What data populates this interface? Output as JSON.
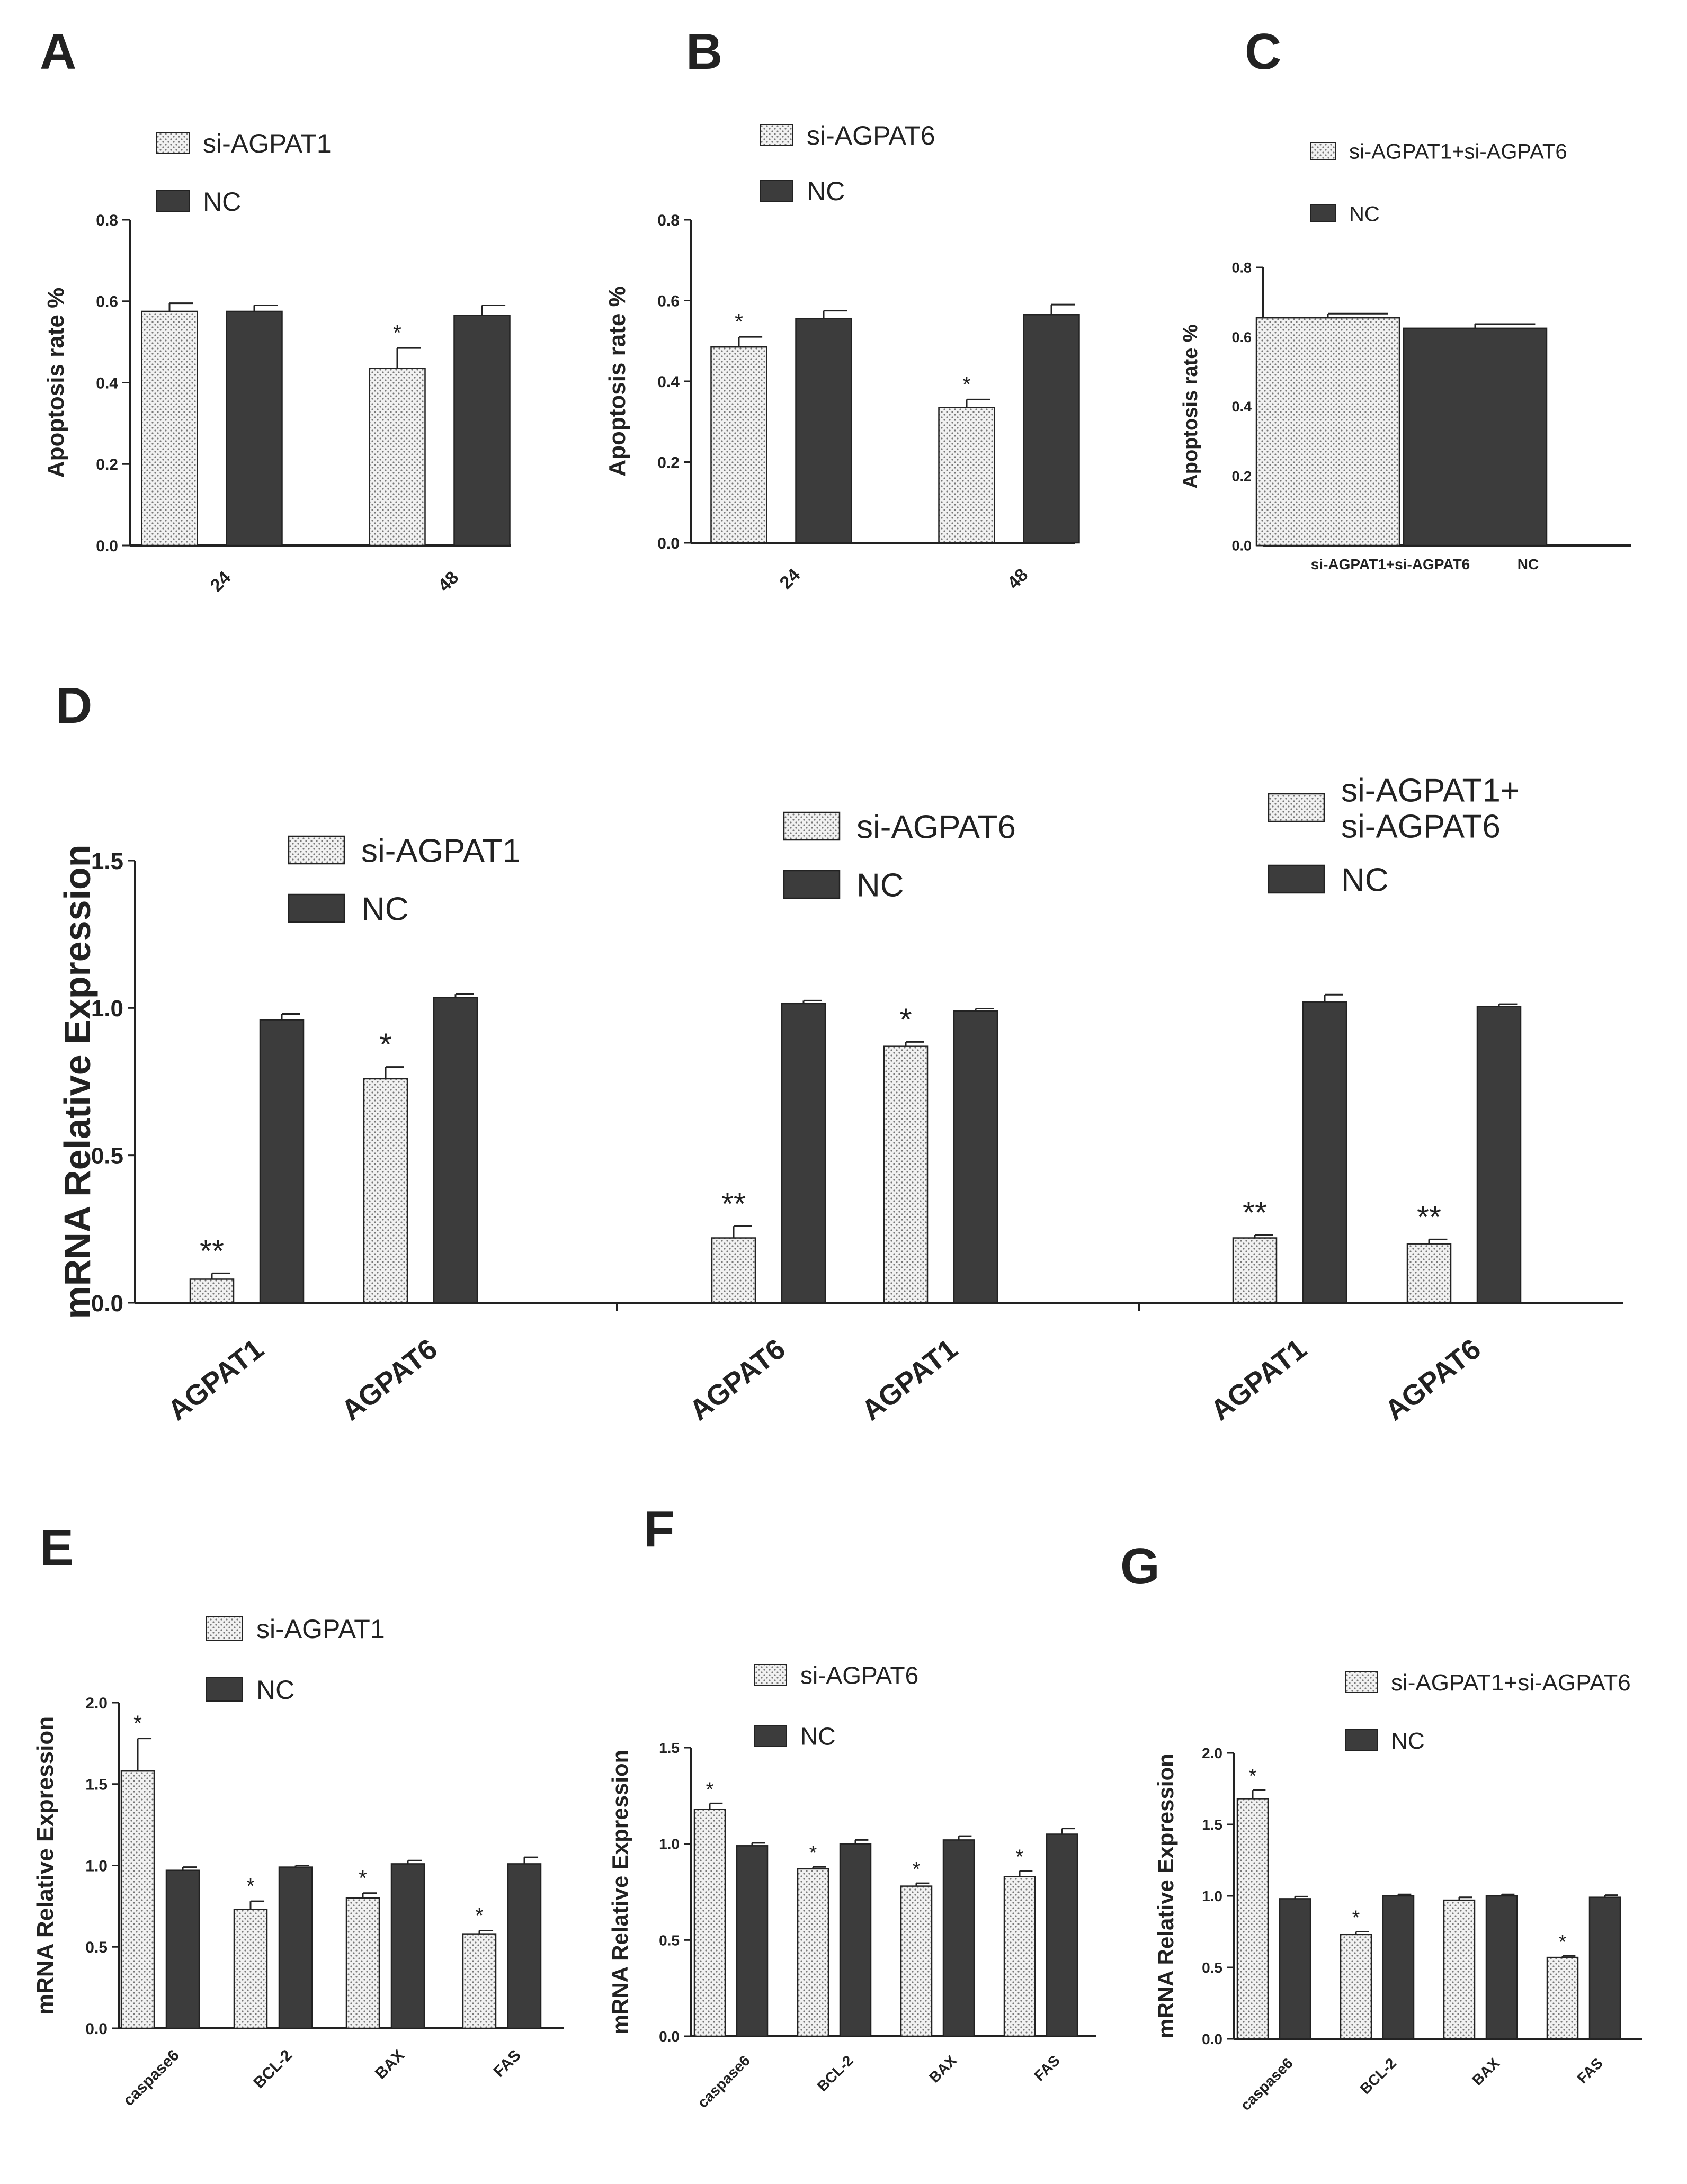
{
  "colors": {
    "nc": "#3c3c3c",
    "si_fill": "#f1f1f1",
    "axis": "#222222",
    "dot": "#777777"
  },
  "chart_data": [
    {
      "panel": "A",
      "type": "bar",
      "categories": [
        "24",
        "48"
      ],
      "series": [
        {
          "name": "si-AGPAT1",
          "values": [
            0.575,
            0.435
          ],
          "errors": [
            0.02,
            0.05
          ]
        },
        {
          "name": "NC",
          "values": [
            0.575,
            0.565
          ],
          "errors": [
            0.015,
            0.025
          ]
        }
      ],
      "significance": [
        [
          "",
          ""
        ],
        [
          "*",
          ""
        ]
      ],
      "ylabel": "Apoptosis rate %",
      "ylim": [
        0,
        0.8
      ],
      "yticks": [
        0,
        0.2,
        0.4,
        0.6,
        0.8
      ],
      "ytick_labels": [
        "0.0",
        "0.2",
        "0.4",
        "0.6",
        "0.8"
      ],
      "legend": [
        "si-AGPAT1",
        "NC"
      ]
    },
    {
      "panel": "B",
      "type": "bar",
      "categories": [
        "24",
        "48"
      ],
      "series": [
        {
          "name": "si-AGPAT6",
          "values": [
            0.485,
            0.335
          ],
          "errors": [
            0.025,
            0.02
          ]
        },
        {
          "name": "NC",
          "values": [
            0.555,
            0.565
          ],
          "errors": [
            0.02,
            0.025
          ]
        }
      ],
      "significance": [
        [
          "*",
          ""
        ],
        [
          "*",
          ""
        ]
      ],
      "ylabel": "Apoptosis rate %",
      "ylim": [
        0,
        0.8
      ],
      "yticks": [
        0,
        0.2,
        0.4,
        0.6,
        0.8
      ],
      "ytick_labels": [
        "0.0",
        "0.2",
        "0.4",
        "0.6",
        "0.8"
      ],
      "legend": [
        "si-AGPAT6",
        "NC"
      ]
    },
    {
      "panel": "C",
      "type": "bar",
      "categories": [
        "si-AGPAT1+si-AGPAT6",
        "NC"
      ],
      "series": [
        {
          "name": "si-AGPAT1+si-AGPAT6",
          "values": [
            0.655,
            null
          ],
          "errors": [
            0.012,
            null
          ]
        },
        {
          "name": "NC",
          "values": [
            null,
            0.625
          ],
          "errors": [
            null,
            0.012
          ]
        }
      ],
      "significance": [
        [
          "",
          ""
        ],
        [
          "",
          ""
        ]
      ],
      "ylabel": "Apoptosis rate %",
      "ylim": [
        0,
        0.8
      ],
      "yticks": [
        0,
        0.2,
        0.4,
        0.6,
        0.8
      ],
      "ytick_labels": [
        "0.0",
        "0.2",
        "0.4",
        "0.6",
        "0.8"
      ],
      "legend": [
        "si-AGPAT1+si-AGPAT6",
        "NC"
      ]
    },
    {
      "panel": "D",
      "type": "bar",
      "categories": [
        "AGPAT1",
        "AGPAT6",
        "AGPAT6",
        "AGPAT1",
        "AGPAT1",
        "AGPAT6"
      ],
      "series": [
        {
          "name": "si",
          "values": [
            0.08,
            0.76,
            0.22,
            0.87,
            0.22,
            0.2
          ],
          "errors": [
            0.02,
            0.04,
            0.04,
            0.015,
            0.01,
            0.015
          ]
        },
        {
          "name": "NC",
          "values": [
            0.96,
            1.035,
            1.015,
            0.99,
            1.02,
            1.005
          ],
          "errors": [
            0.02,
            0.012,
            0.01,
            0.008,
            0.025,
            0.008
          ]
        }
      ],
      "significance": [
        [
          "**",
          ""
        ],
        [
          "*",
          ""
        ],
        [
          "**",
          ""
        ],
        [
          "*",
          ""
        ],
        [
          "**",
          ""
        ],
        [
          "**",
          ""
        ]
      ],
      "ylabel": "mRNA Relative Expression",
      "ylim": [
        0,
        1.5
      ],
      "yticks": [
        0,
        0.5,
        1.0,
        1.5
      ],
      "ytick_labels": [
        "0.0",
        "0.5",
        "1.0",
        "1.5"
      ],
      "legends": [
        {
          "lines": [
            "si-AGPAT1"
          ],
          "nc": "NC"
        },
        {
          "lines": [
            "si-AGPAT6"
          ],
          "nc": "NC"
        },
        {
          "lines": [
            "si-AGPAT1+",
            "si-AGPAT6"
          ],
          "nc": "NC"
        }
      ]
    },
    {
      "panel": "E",
      "type": "bar",
      "categories": [
        "caspase6",
        "BCL-2",
        "BAX",
        "FAS"
      ],
      "series": [
        {
          "name": "si-AGPAT1",
          "values": [
            1.58,
            0.73,
            0.8,
            0.58
          ],
          "errors": [
            0.2,
            0.05,
            0.03,
            0.02
          ]
        },
        {
          "name": "NC",
          "values": [
            0.97,
            0.99,
            1.01,
            1.01
          ],
          "errors": [
            0.02,
            0.01,
            0.02,
            0.04
          ]
        }
      ],
      "significance": [
        [
          "*",
          ""
        ],
        [
          "*",
          ""
        ],
        [
          "*",
          ""
        ],
        [
          "*",
          ""
        ]
      ],
      "ylabel": "mRNA Relative Expression",
      "ylim": [
        0,
        2.0
      ],
      "yticks": [
        0,
        0.5,
        1.0,
        1.5,
        2.0
      ],
      "ytick_labels": [
        "0.0",
        "0.5",
        "1.0",
        "1.5",
        "2.0"
      ],
      "legend": [
        "si-AGPAT1",
        "NC"
      ]
    },
    {
      "panel": "F",
      "type": "bar",
      "categories": [
        "caspase6",
        "BCL-2",
        "BAX",
        "FAS"
      ],
      "series": [
        {
          "name": "si-AGPAT6",
          "values": [
            1.18,
            0.87,
            0.78,
            0.83
          ],
          "errors": [
            0.03,
            0.01,
            0.015,
            0.03
          ]
        },
        {
          "name": "NC",
          "values": [
            0.99,
            1.0,
            1.02,
            1.05
          ],
          "errors": [
            0.015,
            0.02,
            0.02,
            0.03
          ]
        }
      ],
      "significance": [
        [
          "*",
          ""
        ],
        [
          "*",
          ""
        ],
        [
          "*",
          ""
        ],
        [
          "*",
          ""
        ]
      ],
      "ylabel": "mRNA Relative Expression",
      "ylim": [
        0,
        1.5
      ],
      "yticks": [
        0,
        0.5,
        1.0,
        1.5
      ],
      "ytick_labels": [
        "0.0",
        "0.5",
        "1.0",
        "1.5"
      ],
      "legend": [
        "si-AGPAT6",
        "NC"
      ]
    },
    {
      "panel": "G",
      "type": "bar",
      "categories": [
        "caspase6",
        "BCL-2",
        "BAX",
        "FAS"
      ],
      "series": [
        {
          "name": "si-AGPAT1+si-AGPAT6",
          "values": [
            1.68,
            0.73,
            0.97,
            0.57
          ],
          "errors": [
            0.06,
            0.02,
            0.02,
            0.01
          ]
        },
        {
          "name": "NC",
          "values": [
            0.98,
            1.0,
            1.0,
            0.99
          ],
          "errors": [
            0.015,
            0.01,
            0.01,
            0.015
          ]
        }
      ],
      "significance": [
        [
          "*",
          ""
        ],
        [
          "*",
          ""
        ],
        [
          "",
          ""
        ],
        [
          "*",
          ""
        ]
      ],
      "ylabel": "mRNA Relative Expression",
      "ylim": [
        0,
        2.0
      ],
      "yticks": [
        0,
        0.5,
        1.0,
        1.5,
        2.0
      ],
      "ytick_labels": [
        "0.0",
        "0.5",
        "1.0",
        "1.5",
        "2.0"
      ],
      "legend": [
        "si-AGPAT1+si-AGPAT6",
        "NC"
      ]
    }
  ]
}
